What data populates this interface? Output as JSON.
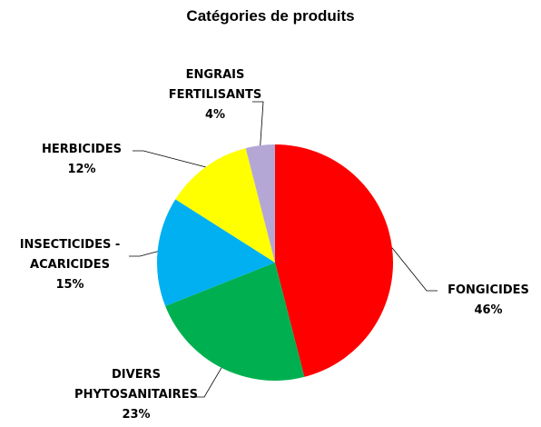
{
  "chart_data": {
    "type": "pie",
    "title": "Catégories de produits",
    "categories": [
      "FONGICIDES",
      "DIVERS PHYTOSANITAIRES",
      "INSECTICIDES - ACARICIDES",
      "HERBICIDES",
      "ENGRAIS FERTILISANTS"
    ],
    "values": [
      46,
      23,
      15,
      12,
      4
    ],
    "value_labels": [
      "46%",
      "23%",
      "15%",
      "12%",
      "4%"
    ],
    "colors": [
      "#ff0000",
      "#00b050",
      "#00b0f0",
      "#ffff00",
      "#b4a7d6"
    ]
  }
}
